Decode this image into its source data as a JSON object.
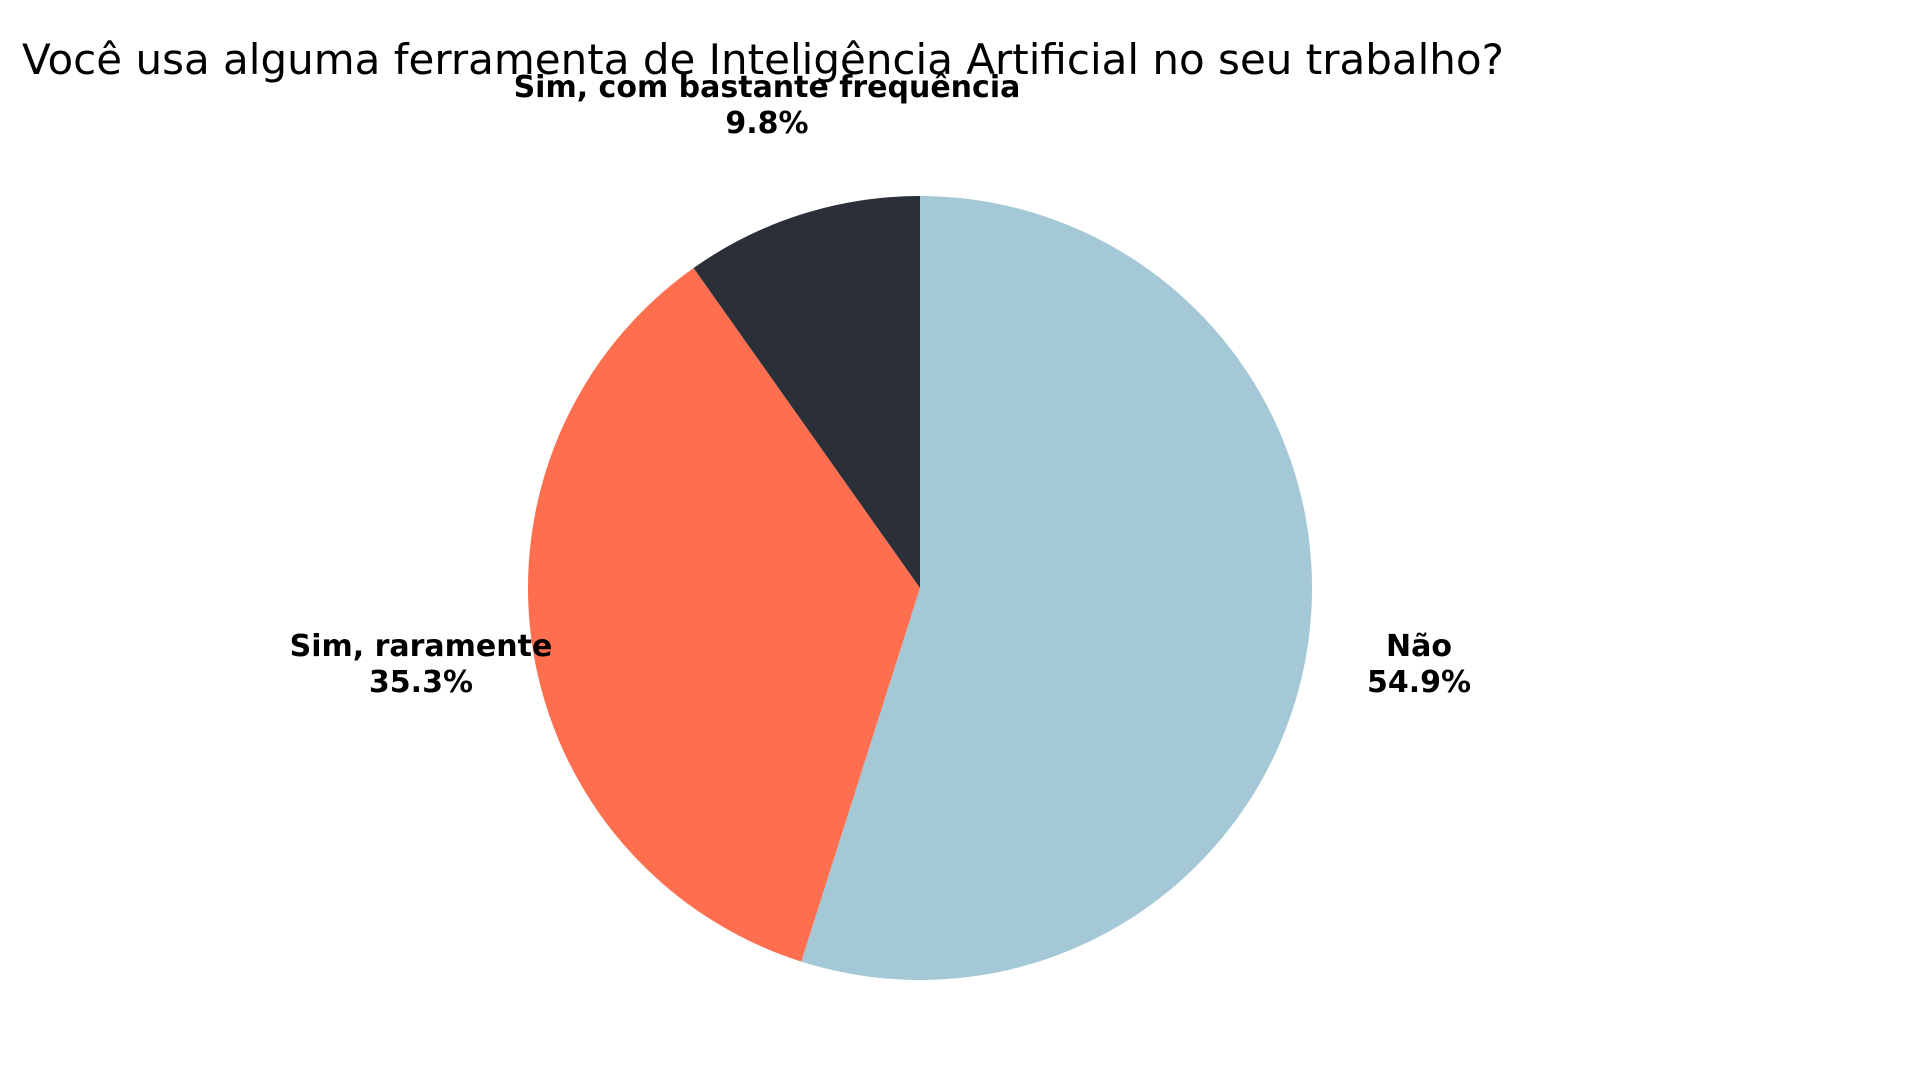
{
  "chart_data": {
    "type": "pie",
    "title": "Você usa alguma ferramenta de Inteligência Artificial no seu trabalho?",
    "start": "12 o'clock",
    "direction": "clockwise",
    "slices": [
      {
        "label": "Não",
        "value": 54.9,
        "value_label": "54.9%",
        "color": "#A4C8D5"
      },
      {
        "label": "Sim, raramente",
        "value": 35.3,
        "value_label": "35.3%",
        "color": "#FF6E4F"
      },
      {
        "label": "Sim, com bastante frequência",
        "value": 9.8,
        "value_label": "9.8%",
        "color": "#2B2F38"
      }
    ],
    "legend": "none"
  }
}
